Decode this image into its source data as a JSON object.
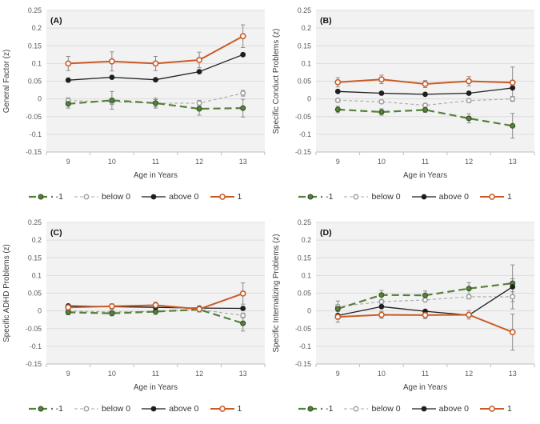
{
  "figure": {
    "background": "#ffffff",
    "plot_bg": "#f2f2f2",
    "gridline_color": "#dcdcdc",
    "axis_line_color": "#bfbfbf",
    "tick_text_color": "#595959",
    "axis_title_color": "#404040",
    "errorbar_color": "#8c8c8c"
  },
  "legend_labels": [
    "-1",
    "below 0",
    "above 0",
    "1"
  ],
  "series_styles": [
    {
      "name": "-1",
      "color": "#55813A",
      "dash": "9,5",
      "marker": "filled",
      "marker_stroke": "#2e4a1e",
      "width": 2.2,
      "r": 3.0
    },
    {
      "name": "below 0",
      "color": "#a8a8a8",
      "dash": "4,3",
      "marker": "open",
      "marker_stroke": "#a0a0a0",
      "width": 1.1,
      "r": 2.7
    },
    {
      "name": "above 0",
      "color": "#1f1f1f",
      "dash": null,
      "marker": "filled",
      "marker_stroke": "#1f1f1f",
      "width": 1.3,
      "r": 2.9
    },
    {
      "name": "1",
      "color": "#c95b27",
      "dash": null,
      "marker": "open",
      "marker_stroke": "#c95b27",
      "width": 2.0,
      "r": 3.1
    }
  ],
  "chart_data": [
    {
      "type": "line",
      "panel_label": "(A)",
      "ylabel": "General Factor (z)",
      "xlabel": "Age in Years",
      "x": [
        9,
        10,
        11,
        12,
        13
      ],
      "xticks": [
        "9",
        "10",
        "11",
        "12",
        "13"
      ],
      "ylim": [
        -0.15,
        0.25
      ],
      "yticks": [
        "0.25",
        "0.2",
        "0.15",
        "0.1",
        "0.05",
        "0",
        "-0.05",
        "-0.1",
        "-0.15"
      ],
      "grid": true,
      "legend_position": "bottom",
      "series": [
        {
          "name": "-1",
          "values": [
            -0.014,
            -0.004,
            -0.012,
            -0.028,
            -0.026
          ],
          "errors": [
            0.012,
            0.025,
            0.014,
            0.018,
            0.025
          ]
        },
        {
          "name": "below 0",
          "values": [
            -0.005,
            -0.008,
            -0.012,
            -0.012,
            0.016
          ],
          "errors": [
            0.008,
            0.008,
            0.01,
            0.008,
            0.008
          ]
        },
        {
          "name": "above 0",
          "values": [
            0.053,
            0.061,
            0.054,
            0.077,
            0.125
          ],
          "errors": [
            0,
            0,
            0,
            0,
            0
          ]
        },
        {
          "name": "1",
          "values": [
            0.1,
            0.106,
            0.1,
            0.11,
            0.177
          ],
          "errors": [
            0.02,
            0.027,
            0.02,
            0.022,
            0.032
          ]
        }
      ]
    },
    {
      "type": "line",
      "panel_label": "(B)",
      "ylabel": "Specific Conduct Problems (z)",
      "xlabel": "Age in Years",
      "x": [
        9,
        10,
        11,
        12,
        13
      ],
      "xticks": [
        "9",
        "10",
        "11",
        "12",
        "13"
      ],
      "ylim": [
        -0.15,
        0.25
      ],
      "yticks": [
        "0.25",
        "0.2",
        "0.15",
        "0.1",
        "0.05",
        "0",
        "-0.05",
        "-0.1",
        "-0.15"
      ],
      "grid": true,
      "legend_position": "bottom",
      "series": [
        {
          "name": "-1",
          "values": [
            -0.03,
            -0.037,
            -0.031,
            -0.055,
            -0.076
          ],
          "errors": [
            0.009,
            0.009,
            0.007,
            0.013,
            0.035
          ]
        },
        {
          "name": "below 0",
          "values": [
            -0.004,
            -0.008,
            -0.018,
            -0.005,
            0.0
          ],
          "errors": [
            0.005,
            0.005,
            0.005,
            0.005,
            0.007
          ]
        },
        {
          "name": "above 0",
          "values": [
            0.021,
            0.016,
            0.013,
            0.016,
            0.031
          ],
          "errors": [
            0,
            0,
            0,
            0,
            0
          ]
        },
        {
          "name": "1",
          "values": [
            0.047,
            0.055,
            0.042,
            0.05,
            0.046
          ],
          "errors": [
            0.013,
            0.012,
            0.01,
            0.013,
            0.044
          ]
        }
      ]
    },
    {
      "type": "line",
      "panel_label": "(C)",
      "ylabel": "Specific ADHD Problems (z)",
      "xlabel": "Age in Years",
      "x": [
        9,
        10,
        11,
        12,
        13
      ],
      "xticks": [
        "9",
        "10",
        "11",
        "12",
        "13"
      ],
      "ylim": [
        -0.15,
        0.25
      ],
      "yticks": [
        "0.25",
        "0.2",
        "0.15",
        "0.1",
        "0.05",
        "0",
        "-0.05",
        "-0.1",
        "-0.15"
      ],
      "grid": true,
      "legend_position": "bottom",
      "series": [
        {
          "name": "-1",
          "values": [
            -0.004,
            -0.007,
            -0.002,
            0.004,
            -0.035
          ],
          "errors": [
            0.007,
            0.007,
            0.008,
            0.007,
            0.022
          ]
        },
        {
          "name": "below 0",
          "values": [
            0.0,
            -0.003,
            -0.001,
            0.004,
            -0.013
          ],
          "errors": [
            0.004,
            0.004,
            0.004,
            0.004,
            0.007
          ]
        },
        {
          "name": "above 0",
          "values": [
            0.014,
            0.012,
            0.01,
            0.008,
            0.007
          ],
          "errors": [
            0,
            0,
            0,
            0,
            0
          ]
        },
        {
          "name": "1",
          "values": [
            0.01,
            0.013,
            0.016,
            0.005,
            0.049
          ],
          "errors": [
            0.007,
            0.007,
            0.009,
            0.008,
            0.03
          ]
        }
      ]
    },
    {
      "type": "line",
      "panel_label": "(D)",
      "ylabel": "Specific Internalizing Problems (z)",
      "xlabel": "Age in Years",
      "x": [
        9,
        10,
        11,
        12,
        13
      ],
      "xticks": [
        "9",
        "10",
        "11",
        "12",
        "13"
      ],
      "ylim": [
        -0.15,
        0.25
      ],
      "yticks": [
        "0.25",
        "0.2",
        "0.15",
        "0.1",
        "0.05",
        "0",
        "-0.05",
        "-0.1",
        "-0.15"
      ],
      "grid": true,
      "legend_position": "bottom",
      "series": [
        {
          "name": "-1",
          "values": [
            0.006,
            0.045,
            0.044,
            0.063,
            0.078
          ],
          "errors": [
            0.022,
            0.013,
            0.012,
            0.017,
            0.013
          ]
        },
        {
          "name": "below 0",
          "values": [
            0.012,
            0.026,
            0.031,
            0.04,
            0.04
          ],
          "errors": [
            0.005,
            0.005,
            0.005,
            0.006,
            0.014
          ]
        },
        {
          "name": "above 0",
          "values": [
            -0.013,
            0.012,
            -0.001,
            -0.012,
            0.068
          ],
          "errors": [
            0,
            0,
            0,
            0,
            0.062
          ]
        },
        {
          "name": "1",
          "values": [
            -0.017,
            -0.011,
            -0.012,
            -0.011,
            -0.06
          ],
          "errors": [
            0.015,
            0.01,
            0.01,
            0.012,
            0.051
          ]
        }
      ]
    }
  ]
}
